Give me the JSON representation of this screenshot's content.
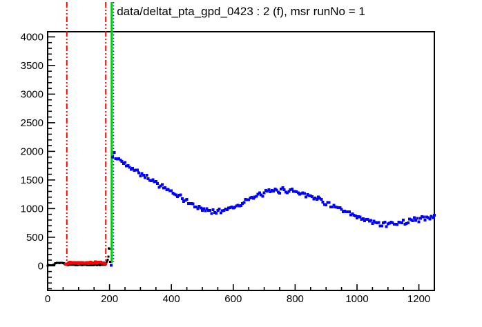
{
  "chart_data": {
    "type": "scatter",
    "title": "data/deltat_pta_gpd_0423 : 2 (f), msr runNo = 1",
    "xlabel": "",
    "ylabel": "",
    "xlim": [
      0,
      1250
    ],
    "ylim": [
      -430,
      4090
    ],
    "grid": false,
    "legend": null,
    "x_major_ticks": [
      0,
      200,
      400,
      600,
      800,
      1000,
      1200
    ],
    "x_minor_step": 50,
    "y_major_ticks": [
      0,
      500,
      1000,
      1500,
      2000,
      2500,
      3000,
      3500,
      4000
    ],
    "y_minor_step": 100,
    "colors": {
      "frame": "#000000",
      "raw_histogram": "#000000",
      "background_window": "#ff0000",
      "t0_line": "#00cf00",
      "good_bin_line": "#0000ff",
      "decay_data": "#0000ff"
    },
    "vlines": [
      {
        "name": "background-range-start",
        "x": 62,
        "color": "#ff0000",
        "style": "dash-dot-dot",
        "width": 2
      },
      {
        "name": "background-range-end",
        "x": 188,
        "color": "#ff0000",
        "style": "dash-dot-dot",
        "width": 2
      },
      {
        "name": "t0-marker",
        "x": 207,
        "color": "#00cf00",
        "style": "solid",
        "width": 3
      },
      {
        "name": "first-good-bin-marker",
        "x": 213,
        "color": "#0000ff",
        "style": "dotted",
        "width": 1.6
      }
    ],
    "series": [
      {
        "name": "raw-histogram-pre-t0",
        "color": "#000000",
        "marker_px": 3,
        "step": 2,
        "noise_sd": 5,
        "seed": 7,
        "anchors": [
          [
            0,
            10
          ],
          [
            20,
            12
          ],
          [
            24,
            46
          ],
          [
            40,
            52
          ],
          [
            52,
            48
          ],
          [
            56,
            30
          ],
          [
            62,
            14
          ],
          [
            180,
            14
          ],
          [
            186,
            20
          ],
          [
            190,
            55
          ],
          [
            193,
            80
          ],
          [
            196,
            160
          ],
          [
            198,
            300
          ],
          [
            199,
            385
          ],
          [
            200,
            300
          ],
          [
            201,
            170
          ],
          [
            202,
            70
          ],
          [
            203,
            25
          ]
        ]
      },
      {
        "name": "background-window-data",
        "color": "#ff0000",
        "marker_px": 4,
        "step": 3,
        "noise_sd": 16,
        "seed": 13,
        "anchors": [
          [
            58,
            38
          ],
          [
            64,
            52
          ],
          [
            80,
            58
          ],
          [
            100,
            55
          ],
          [
            120,
            57
          ],
          [
            140,
            53
          ],
          [
            160,
            57
          ],
          [
            175,
            55
          ],
          [
            183,
            50
          ],
          [
            187,
            38
          ]
        ]
      },
      {
        "name": "first-bin-after-t0",
        "color": "#0000ff",
        "marker_px": 4,
        "points": [
          [
            205,
            10
          ]
        ]
      },
      {
        "name": "muon-decay-data",
        "color": "#0000ff",
        "marker_px": 4,
        "step": 5,
        "noise_sd": 55,
        "seed": 42,
        "anchors": [
          [
            210,
            1900
          ],
          [
            215,
            1950
          ],
          [
            220,
            1890
          ],
          [
            230,
            1855
          ],
          [
            240,
            1822
          ],
          [
            250,
            1790
          ],
          [
            260,
            1757
          ],
          [
            270,
            1723
          ],
          [
            280,
            1690
          ],
          [
            290,
            1656
          ],
          [
            300,
            1622
          ],
          [
            310,
            1588
          ],
          [
            320,
            1553
          ],
          [
            330,
            1518
          ],
          [
            340,
            1483
          ],
          [
            350,
            1452
          ],
          [
            360,
            1420
          ],
          [
            370,
            1390
          ],
          [
            380,
            1355
          ],
          [
            390,
            1320
          ],
          [
            400,
            1288
          ],
          [
            410,
            1255
          ],
          [
            420,
            1222
          ],
          [
            430,
            1190
          ],
          [
            440,
            1158
          ],
          [
            450,
            1126
          ],
          [
            460,
            1094
          ],
          [
            470,
            1063
          ],
          [
            480,
            1036
          ],
          [
            490,
            1012
          ],
          [
            500,
            992
          ],
          [
            510,
            976
          ],
          [
            520,
            964
          ],
          [
            530,
            957
          ],
          [
            540,
            954
          ],
          [
            550,
            957
          ],
          [
            560,
            964
          ],
          [
            570,
            976
          ],
          [
            580,
            992
          ],
          [
            590,
            1010
          ],
          [
            600,
            1032
          ],
          [
            610,
            1054
          ],
          [
            620,
            1078
          ],
          [
            630,
            1103
          ],
          [
            640,
            1128
          ],
          [
            650,
            1154
          ],
          [
            660,
            1180
          ],
          [
            670,
            1205
          ],
          [
            680,
            1228
          ],
          [
            690,
            1249
          ],
          [
            700,
            1267
          ],
          [
            710,
            1283
          ],
          [
            720,
            1296
          ],
          [
            730,
            1306
          ],
          [
            740,
            1313
          ],
          [
            750,
            1318
          ],
          [
            760,
            1320
          ],
          [
            770,
            1320
          ],
          [
            780,
            1317
          ],
          [
            790,
            1311
          ],
          [
            800,
            1302
          ],
          [
            810,
            1291
          ],
          [
            820,
            1277
          ],
          [
            830,
            1261
          ],
          [
            840,
            1243
          ],
          [
            850,
            1223
          ],
          [
            860,
            1201
          ],
          [
            870,
            1178
          ],
          [
            880,
            1154
          ],
          [
            890,
            1129
          ],
          [
            900,
            1103
          ],
          [
            910,
            1076
          ],
          [
            920,
            1049
          ],
          [
            930,
            1022
          ],
          [
            940,
            995
          ],
          [
            950,
            968
          ],
          [
            960,
            942
          ],
          [
            970,
            917
          ],
          [
            980,
            893
          ],
          [
            990,
            870
          ],
          [
            1000,
            848
          ],
          [
            1010,
            828
          ],
          [
            1020,
            809
          ],
          [
            1030,
            792
          ],
          [
            1040,
            777
          ],
          [
            1050,
            764
          ],
          [
            1060,
            753
          ],
          [
            1070,
            745
          ],
          [
            1080,
            739
          ],
          [
            1090,
            736
          ],
          [
            1100,
            735
          ],
          [
            1110,
            736
          ],
          [
            1120,
            740
          ],
          [
            1130,
            746
          ],
          [
            1140,
            754
          ],
          [
            1150,
            764
          ],
          [
            1160,
            776
          ],
          [
            1170,
            789
          ],
          [
            1180,
            803
          ],
          [
            1190,
            818
          ],
          [
            1200,
            815
          ],
          [
            1210,
            826
          ],
          [
            1220,
            836
          ],
          [
            1230,
            845
          ],
          [
            1240,
            853
          ],
          [
            1250,
            860
          ]
        ]
      }
    ]
  }
}
